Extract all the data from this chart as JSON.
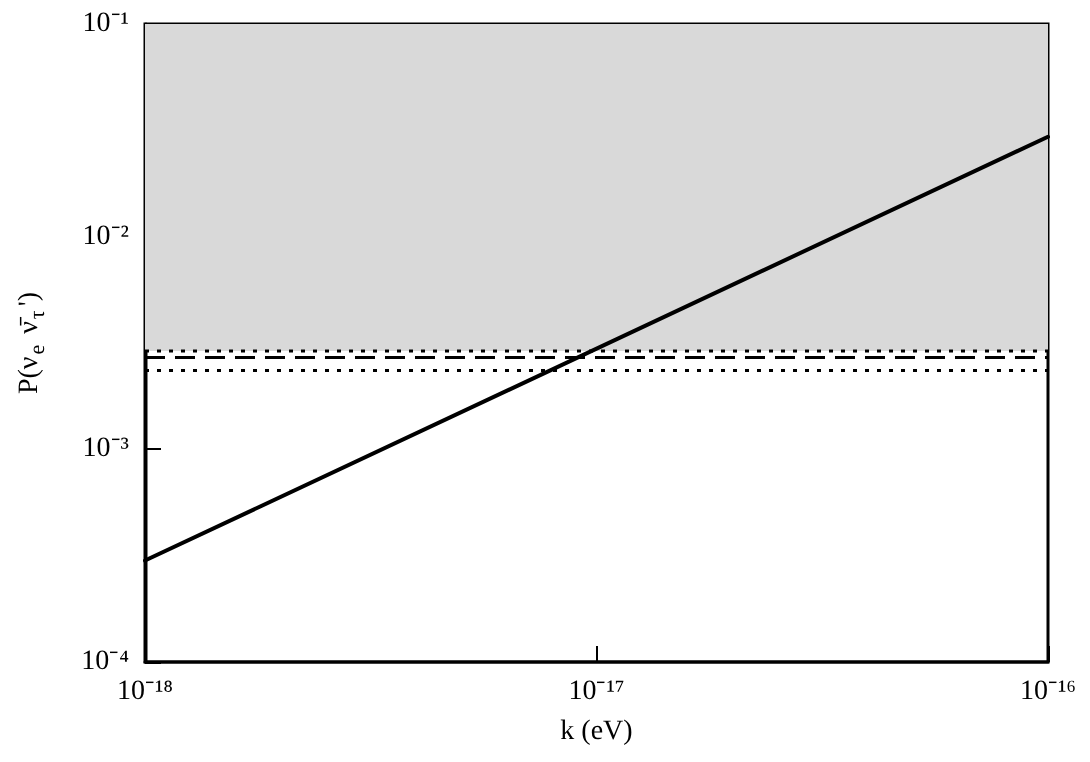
{
  "chart_data": {
    "type": "line",
    "xlabel": "k (eV)",
    "ylabel": "P(ν$_{e}$ ν̄$_{τ}$')",
    "x": [
      1e-18,
      1e-16
    ],
    "series": [
      {
        "color": "#000000",
        "values": [
          0.0003,
          0.0295
        ]
      }
    ],
    "log": "xy",
    "grid": false,
    "marker": "none",
    "line_style": "solid",
    "xlim": [
      1e-18,
      1e-16
    ],
    "ylim": [
      0.0001,
      0.1
    ],
    "xticks": [
      {
        "value": 1e-18,
        "label": "10⁻¹⁸"
      },
      {
        "value": 1e-17,
        "label": "10⁻¹⁷"
      },
      {
        "value": 1e-16,
        "label": "10⁻¹⁶"
      }
    ],
    "yticks": [
      {
        "value": 0.0001,
        "label": "10⁻⁴"
      },
      {
        "value": 0.001,
        "label": "10⁻³"
      },
      {
        "value": 0.01,
        "label": "10⁻²"
      },
      {
        "value": 0.1,
        "label": "10⁻¹"
      }
    ],
    "bands": [
      {
        "axis": "y",
        "from": 0.0029,
        "to": 0.1,
        "color": "#d9d9d9"
      }
    ],
    "ref_lines": [
      {
        "axis": "y",
        "value": 0.0029,
        "line_style": "dotted",
        "color": "#000000"
      },
      {
        "axis": "y",
        "value": 0.0027,
        "line_style": "dashed",
        "color": "#000000"
      },
      {
        "axis": "y",
        "value": 0.00235,
        "line_style": "dotted",
        "color": "#000000"
      }
    ]
  }
}
